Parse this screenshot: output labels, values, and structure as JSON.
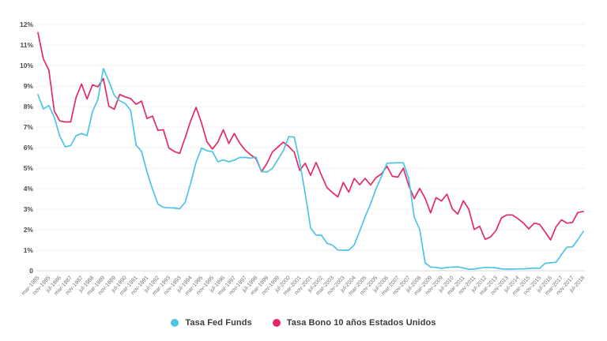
{
  "chart_data": {
    "type": "line",
    "title": "",
    "xlabel": "",
    "ylabel": "",
    "ylim": [
      0,
      12
    ],
    "grid": "horizontal",
    "legend_position": "bottom",
    "y_tick_labels": [
      "0",
      "1%",
      "2%",
      "3%",
      "4%",
      "5%",
      "6%",
      "7%",
      "8%",
      "9%",
      "10%",
      "11%",
      "12%"
    ],
    "x_tick_labels": [
      "mar-1985",
      "nov-1985",
      "jul-1986",
      "mar-1987",
      "nov-1987",
      "jul-1988",
      "mar-1989",
      "nov-1989",
      "jul-1990",
      "mar-1991",
      "nov-1991",
      "jul-1992",
      "mar-1993",
      "nov-1993",
      "jul-1994",
      "mar-1995",
      "nov-1995",
      "jul-1996",
      "mar-1997",
      "nov-1997",
      "jul-1998",
      "mar-1999",
      "nov-1999",
      "jul-2000",
      "mar-2001",
      "nov-2001",
      "jul-2002",
      "mar-2003",
      "nov-2003",
      "jul-2004",
      "mar-2005",
      "nov-2005",
      "jul-2006",
      "mar-2007",
      "nov-2007",
      "jul-2008",
      "mar-2009",
      "nov-2009",
      "jul-2010",
      "mar-2011",
      "nov-2011",
      "jul-2012",
      "mar-2013",
      "nov-2013",
      "jul-2014",
      "mar-2015",
      "nov-2015",
      "jul-2016",
      "mar-2017",
      "nov-2017",
      "jul-2018"
    ],
    "x_points_per_tick": 2,
    "x_note": "series sampled every 4 months from mar-1985 to jul-2018; tick labels fall on every second sample",
    "series": [
      {
        "name": "Tasa Fed Funds",
        "color": "#4dc4e6",
        "values": [
          8.58,
          7.88,
          8.05,
          7.48,
          6.56,
          6.04,
          6.1,
          6.58,
          6.69,
          6.58,
          7.75,
          8.35,
          9.85,
          9.24,
          8.55,
          8.28,
          8.15,
          7.81,
          6.12,
          5.82,
          4.81,
          3.98,
          3.25,
          3.09,
          3.07,
          3.06,
          3.02,
          3.34,
          4.26,
          5.29,
          5.98,
          5.85,
          5.8,
          5.31,
          5.4,
          5.31,
          5.39,
          5.52,
          5.52,
          5.49,
          5.54,
          4.83,
          4.81,
          4.99,
          5.42,
          5.85,
          6.54,
          6.51,
          5.31,
          3.77,
          2.09,
          1.73,
          1.73,
          1.34,
          1.25,
          1.01,
          1.0,
          1.0,
          1.26,
          1.93,
          2.63,
          3.26,
          4.0,
          4.59,
          5.24,
          5.25,
          5.26,
          5.26,
          4.49,
          2.61,
          2.01,
          0.39,
          0.18,
          0.16,
          0.12,
          0.16,
          0.18,
          0.19,
          0.14,
          0.07,
          0.08,
          0.13,
          0.16,
          0.16,
          0.14,
          0.09,
          0.08,
          0.08,
          0.09,
          0.09,
          0.11,
          0.13,
          0.12,
          0.36,
          0.39,
          0.41,
          0.79,
          1.15,
          1.16,
          1.51,
          1.91
        ]
      },
      {
        "name": "Tasa Bono 10 años Estados Unidos",
        "color": "#e22a65",
        "values": [
          11.6,
          10.31,
          9.78,
          7.78,
          7.3,
          7.25,
          7.25,
          8.45,
          9.1,
          8.37,
          9.06,
          8.96,
          9.36,
          8.02,
          7.87,
          8.59,
          8.47,
          8.39,
          8.11,
          8.27,
          7.42,
          7.54,
          6.84,
          6.87,
          5.98,
          5.81,
          5.72,
          6.48,
          7.3,
          7.96,
          7.2,
          6.28,
          5.93,
          6.27,
          6.87,
          6.2,
          6.69,
          6.22,
          5.88,
          5.65,
          5.46,
          4.83,
          5.23,
          5.79,
          6.03,
          6.26,
          6.05,
          5.78,
          4.89,
          5.24,
          4.65,
          5.28,
          4.65,
          4.05,
          3.81,
          3.6,
          4.3,
          3.83,
          4.5,
          4.19,
          4.5,
          4.18,
          4.54,
          4.72,
          5.09,
          4.6,
          4.56,
          5.0,
          4.15,
          3.51,
          4.01,
          3.53,
          2.82,
          3.56,
          3.4,
          3.73,
          3.01,
          2.76,
          3.41,
          3.0,
          2.01,
          2.17,
          1.53,
          1.65,
          1.96,
          2.58,
          2.72,
          2.72,
          2.54,
          2.33,
          2.04,
          2.32,
          2.26,
          1.89,
          1.5,
          2.14,
          2.48,
          2.32,
          2.35,
          2.84,
          2.89
        ]
      }
    ]
  },
  "colors": {
    "background": "#ffffff",
    "gridline": "#f1f1f1",
    "baseline": "#d9d9d9",
    "y_label": "#4a4a4a",
    "x_label": "#757575",
    "legend_text": "#3b3b3b"
  }
}
